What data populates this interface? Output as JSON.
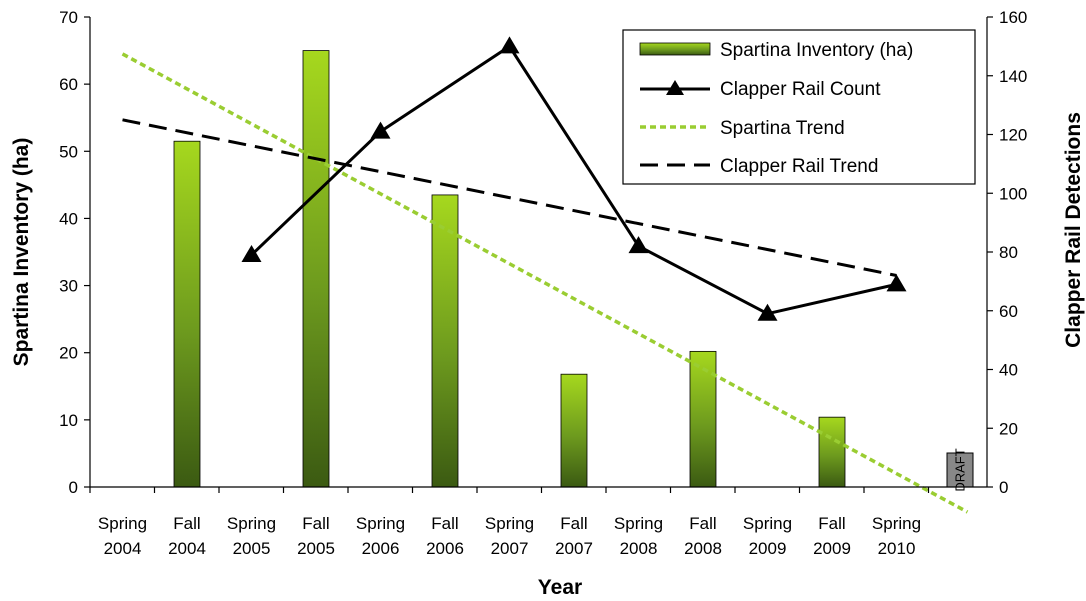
{
  "chart_data": {
    "type": "bar",
    "categories": [
      [
        "Spring",
        "2004"
      ],
      [
        "Fall",
        "2004"
      ],
      [
        "Spring",
        "2005"
      ],
      [
        "Fall",
        "2005"
      ],
      [
        "Spring",
        "2006"
      ],
      [
        "Fall",
        "2006"
      ],
      [
        "Spring",
        "2007"
      ],
      [
        "Fall",
        "2007"
      ],
      [
        "Spring",
        "2008"
      ],
      [
        "Fall",
        "2008"
      ],
      [
        "Spring",
        "2009"
      ],
      [
        "Fall",
        "2009"
      ],
      [
        "Spring",
        "2010"
      ]
    ],
    "xlabel": "Year",
    "ylabel": "Spartina Inventory (ha)",
    "y2label": "Clapper Rail Detections",
    "ylim": [
      0,
      70
    ],
    "yticks": [
      0,
      10,
      20,
      30,
      40,
      50,
      60,
      70
    ],
    "y2lim": [
      0,
      160
    ],
    "y2ticks": [
      0,
      20,
      40,
      60,
      80,
      100,
      120,
      140,
      160
    ],
    "legend_position": "top-right",
    "series": [
      {
        "name": "Spartina Inventory (ha)",
        "kind": "bar",
        "axis": "left",
        "color": "#88c41a",
        "values": [
          null,
          51.5,
          null,
          65,
          null,
          43.5,
          null,
          16.8,
          null,
          20.2,
          null,
          10.4,
          null
        ]
      },
      {
        "name": "Clapper Rail Count",
        "kind": "line",
        "marker": "triangle",
        "axis": "right",
        "color": "#000000",
        "x": [
          "Spring 2005",
          "Fall 2005",
          "Spring 2006",
          "Spring 2007",
          "Spring 2008",
          "Spring 2009",
          "Spring 2010"
        ],
        "values": [
          79,
          null,
          121,
          150,
          82,
          59,
          69
        ]
      },
      {
        "name": "Spartina Trend",
        "kind": "trend",
        "style": "dotted",
        "axis": "left",
        "color": "#9acd32",
        "start": {
          "x": "Spring 2004",
          "value": 64.5
        },
        "end": {
          "x": "Spring 2010",
          "value": 2
        }
      },
      {
        "name": "Clapper Rail Trend",
        "kind": "trend",
        "style": "dashed",
        "axis": "right",
        "color": "#000000",
        "start": {
          "x": "Spring 2004",
          "value": 125
        },
        "end": {
          "x": "Spring 2010",
          "value": 72
        }
      }
    ],
    "stamp": {
      "text": "DRAFT",
      "color": "#888888"
    }
  }
}
